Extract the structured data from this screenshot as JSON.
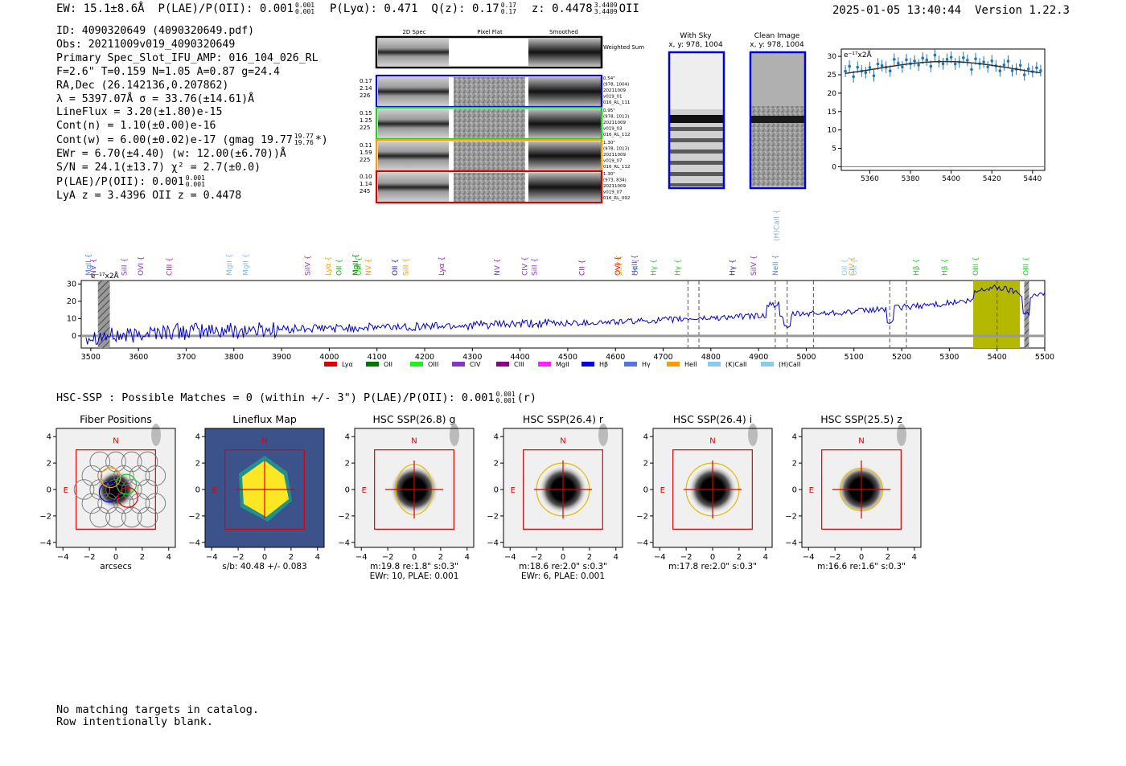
{
  "header": {
    "ew": "EW: 15.1±8.6Å",
    "plae_label": "P(LAE)/P(OII): 0.001",
    "plae_hi": "0.001",
    "plae_lo": "0.001",
    "plya": "P(Lyα): 0.471",
    "qz_label": "Q(z): 0.17",
    "qz_hi": "0.17",
    "qz_lo": "0.17",
    "z_label": "z: 0.4478",
    "z_hi": "3.4409",
    "z_lo": "3.4409",
    "z_line": "OII",
    "timestamp": "2025-01-05 13:40:44",
    "version": "Version 1.22.3"
  },
  "info": {
    "id": "ID: 4090320649 (4090320649.pdf)",
    "obs": "Obs: 20211009v019_4090320649",
    "primary": "Primary Spec_Slot_IFU_AMP: 016_104_026_RL",
    "fparams": "F=2.6\"  T=0.159  N=1.05  A=0.87  g=24.4",
    "radec": "RA,Dec (26.142136,0.207862)",
    "lambda": "λ = 5397.07Å  σ = 33.76(±14.61)Å",
    "lineflux": "LineFlux = 3.20(±1.80)e-15",
    "contn": "Cont(n) = 1.10(±0.00)e-16",
    "contw": "Cont(w) = 6.00(±0.02)e-17 (gmag 19.77",
    "contw_hi": "19.77",
    "contw_lo": "19.76",
    "contw_end": "*)",
    "ewr": "EWr = 6.70(±4.40) (w: 12.00(±6.70))Å",
    "sn": "S/N = 24.1(±13.7)  χ² = 2.7(±0.0)",
    "plae": "P(LAE)/P(OII): 0.001",
    "plae_hi": "0.001",
    "plae_lo": "0.001",
    "lyaz": "LyA z = 3.4396  OII z = 0.4478"
  },
  "cutouts": {
    "col_headers": [
      "2D Spec",
      "Pixel Flat",
      "Smoothed"
    ],
    "weighted_label": "Weighted Sum",
    "rows": [
      {
        "color": "#0000dd",
        "left": [
          "0.17",
          "2.14",
          "226"
        ],
        "right": [
          "0.54\"",
          "(978, 1004)",
          "20211009",
          "v019_01",
          "016_RL_111"
        ]
      },
      {
        "color": "#22cc22",
        "left": [
          "0.15",
          "1.25",
          "225"
        ],
        "right": [
          "0.95\"",
          "(978, 1013)",
          "20211009",
          "v019_03",
          "016_RL_112"
        ]
      },
      {
        "color": "#ff9900",
        "left": [
          "0.11",
          "1.59",
          "225"
        ],
        "right": [
          "1.30\"",
          "(978, 1013)",
          "20211009",
          "v019_07",
          "016_RL_112"
        ]
      },
      {
        "color": "#dd0000",
        "left": [
          "0.10",
          "1.14",
          "245"
        ],
        "right": [
          "1.30\"",
          "(973, 834)",
          "20211009",
          "v019_07",
          "016_RL_092"
        ]
      }
    ]
  },
  "sky_panels": {
    "with_sky_title": "With Sky",
    "with_sky_coords": "x, y: 978, 1004",
    "clean_title": "Clean Image",
    "clean_coords": "x, y: 978, 1004"
  },
  "zoom_plot": {
    "ylabel_unit": "e⁻¹⁷x2Å",
    "xticks": [
      "5360",
      "5380",
      "5400",
      "5420",
      "5440"
    ],
    "yticks": [
      "0",
      "5",
      "10",
      "15",
      "20",
      "25",
      "30"
    ]
  },
  "spectrum": {
    "ylabel_unit": "e⁻¹⁷x2Å",
    "xticks": [
      "3500",
      "3600",
      "3700",
      "3800",
      "3900",
      "4000",
      "4100",
      "4200",
      "4300",
      "4400",
      "4500",
      "4600",
      "4700",
      "4800",
      "4900",
      "5000",
      "5100",
      "5200",
      "5300",
      "5400",
      "5500"
    ],
    "yticks": [
      "0",
      "10",
      "20",
      "30"
    ],
    "line_labels": [
      {
        "text": "MgII",
        "color": "#5588dd",
        "w": 3495
      },
      {
        "text": "NV",
        "color": "#8833cc",
        "w": 3505
      },
      {
        "text": "SiII",
        "color": "#8833cc",
        "w": 3570
      },
      {
        "text": "OVI",
        "color": "#8833cc",
        "w": 3605
      },
      {
        "text": "CIII",
        "color": "#cc00cc",
        "w": 3665
      },
      {
        "text": "MgII",
        "color": "#88bbdd",
        "w": 3790
      },
      {
        "text": "MgII",
        "color": "#88bbdd",
        "w": 3825
      },
      {
        "text": "SiIV",
        "color": "#8833cc",
        "w": 3955
      },
      {
        "text": "Lyα",
        "color": "#ff9900",
        "w": 3998
      },
      {
        "text": "OII",
        "color": "#22aa22",
        "w": 4020
      },
      {
        "text": "MgII",
        "color": "#007700",
        "w": 4055
      },
      {
        "text": "OIII",
        "color": "#22cc22",
        "w": 4062
      },
      {
        "text": "NV",
        "color": "#ff9900",
        "w": 4082
      },
      {
        "text": "OII",
        "color": "#2222cc",
        "w": 4138
      },
      {
        "text": "SiII",
        "color": "#ff9900",
        "w": 4160
      },
      {
        "text": "Lyα",
        "color": "#cc00cc",
        "w": 4235
      },
      {
        "text": "NV",
        "color": "#8833cc",
        "w": 4352
      },
      {
        "text": "CIV",
        "color": "#8833cc",
        "w": 4410
      },
      {
        "text": "SiII",
        "color": "#8833cc",
        "w": 4430
      },
      {
        "text": "CII",
        "color": "#cc00cc",
        "w": 4530
      },
      {
        "text": "OVI",
        "color": "#dd0000",
        "w": 4605
      },
      {
        "text": "SiIV",
        "color": "#ff9900",
        "w": 4608
      },
      {
        "text": "HeII",
        "color": "#8833cc",
        "w": 4640
      },
      {
        "text": "OII",
        "color": "#5588dd",
        "w": 4642
      },
      {
        "text": "Hγ",
        "color": "#22cc22",
        "w": 4680
      },
      {
        "text": "Hγ",
        "color": "#22cc22",
        "w": 4730
      },
      {
        "text": "Hγ",
        "color": "#2222cc",
        "w": 4845
      },
      {
        "text": "SiIV",
        "color": "#8833cc",
        "w": 4890
      },
      {
        "text": "NeII",
        "color": "#5588dd",
        "w": 4935
      },
      {
        "text": "(H)CaII",
        "color": "#88aadd",
        "w": 4938
      },
      {
        "text": "OII",
        "color": "#88ccee",
        "w": 5080
      },
      {
        "text": "CIV",
        "color": "#ff9900",
        "w": 5095
      },
      {
        "text": "OII",
        "color": "#88ccee",
        "w": 5100
      },
      {
        "text": "Hβ",
        "color": "#22cc22",
        "w": 5230
      },
      {
        "text": "Hβ",
        "color": "#22cc22",
        "w": 5290
      },
      {
        "text": "OIII",
        "color": "#22cc22",
        "w": 5355
      },
      {
        "text": "OIII",
        "color": "#22cc22",
        "w": 5460
      }
    ],
    "legend": [
      {
        "name": "Lyα",
        "color": "#dd0000"
      },
      {
        "name": "OII",
        "color": "#007700"
      },
      {
        "name": "OIII",
        "color": "#22ee22"
      },
      {
        "name": "CIV",
        "color": "#8833cc"
      },
      {
        "name": "CIII",
        "color": "#880088"
      },
      {
        "name": "MgII",
        "color": "#ff22ff"
      },
      {
        "name": "Hβ",
        "color": "#0000ee"
      },
      {
        "name": "Hγ",
        "color": "#5577dd"
      },
      {
        "name": "HeII",
        "color": "#ff9900"
      },
      {
        "name": "(K)CaII",
        "color": "#88ccee"
      },
      {
        "name": "(H)CaII",
        "color": "#88ccee"
      }
    ]
  },
  "hsc": {
    "line": "HSC-SSP : Possible Matches = 0 (within +/- 3\")  P(LAE)/P(OII): 0.001",
    "line_hi": "0.001",
    "line_lo": "0.001",
    "line_end": "(r)",
    "panels": [
      {
        "title": "Fiber Positions",
        "caption1": "arcsecs",
        "caption2": ""
      },
      {
        "title": "Lineflux Map",
        "caption1": "s/b: 40.48 +/- 0.083",
        "caption2": ""
      },
      {
        "title": "HSC SSP(26.8) g",
        "caption1": "m:19.8  re:1.8\"  s:0.3\"",
        "caption2": "EWr: 10, PLAE: 0.001"
      },
      {
        "title": "HSC SSP(26.4) r",
        "caption1": "m:18.6  re:2.0\"  s:0.3\"",
        "caption2": "EWr: 6, PLAE: 0.001"
      },
      {
        "title": "HSC SSP(26.4) i",
        "caption1": "m:17.8  re:2.0\"  s:0.3\"",
        "caption2": ""
      },
      {
        "title": "HSC SSP(25.5) z",
        "caption1": "m:16.6  re:1.6\"  s:0.3\"",
        "caption2": ""
      }
    ],
    "axis_ticks": [
      "−4",
      "−2",
      "0",
      "2",
      "4"
    ],
    "north_label": "N",
    "east_label": "E"
  },
  "footer": {
    "line1": "No matching targets in catalog.",
    "line2": "Row intentionally blank."
  }
}
